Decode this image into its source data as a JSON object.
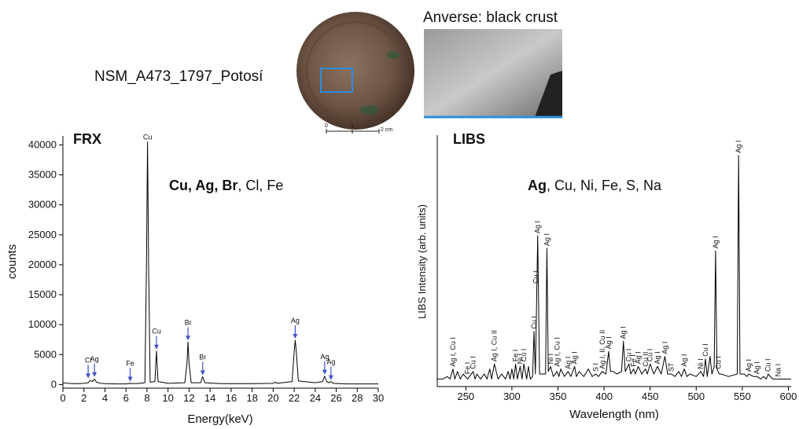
{
  "figure": {
    "sample": "NSM_A473_1797_Potosí",
    "photo_caption": "Anverse: black crust",
    "scale_labels": [
      "0",
      "1",
      "2 cm"
    ]
  },
  "chart_data": [
    {
      "type": "line",
      "title": "FRX",
      "note_bold": "Cu, Ag, Br",
      "note": ", Cl, Fe",
      "x_label": "Energy(keV)",
      "y_label": "counts",
      "color": "#000000",
      "arrow_color": "#3f51c6",
      "x": [
        0,
        0.5,
        1,
        1.5,
        2,
        2.4,
        2.6,
        2.8,
        3,
        3.2,
        3.6,
        4,
        5,
        6,
        6.3,
        6.4,
        6.5,
        7,
        7.8,
        7.95,
        8.05,
        8.15,
        8.3,
        8.75,
        8.9,
        9.05,
        10,
        11.6,
        11.8,
        11.9,
        12,
        12.2,
        13.1,
        13.3,
        13.5,
        15,
        18,
        20,
        20.2,
        20.4,
        21.8,
        22,
        22.1,
        22.2,
        22.4,
        24,
        24.7,
        24.9,
        25.1,
        25.3,
        25.5,
        25.7,
        27,
        30
      ],
      "values": [
        300,
        200,
        150,
        150,
        200,
        300,
        700,
        500,
        900,
        400,
        200,
        150,
        100,
        100,
        150,
        250,
        150,
        150,
        300,
        20000,
        40500,
        20000,
        400,
        500,
        5600,
        500,
        200,
        300,
        3500,
        7100,
        3500,
        300,
        300,
        1300,
        300,
        150,
        150,
        200,
        400,
        200,
        500,
        5500,
        7400,
        5500,
        600,
        300,
        500,
        1400,
        500,
        300,
        500,
        200,
        100,
        100
      ],
      "xlim": [
        0,
        30
      ],
      "xticks": [
        0,
        2,
        4,
        6,
        8,
        10,
        12,
        14,
        16,
        18,
        20,
        22,
        24,
        26,
        28,
        30
      ],
      "ylim": [
        -600,
        41500
      ],
      "yticks": [
        0,
        5000,
        10000,
        15000,
        20000,
        25000,
        30000,
        35000,
        40000
      ],
      "annotations": [
        {
          "text": "Cl",
          "x": 2.4,
          "y": 800,
          "arrow": true
        },
        {
          "text": "Ag",
          "x": 3,
          "y": 1000,
          "arrow": true
        },
        {
          "text": "Fe",
          "x": 6.4,
          "y": 250,
          "arrow": true
        },
        {
          "text": "Cu",
          "x": 8.05,
          "y": 40500,
          "arrow": false
        },
        {
          "text": "Cu",
          "x": 8.9,
          "y": 5600,
          "arrow": true
        },
        {
          "text": "Br",
          "x": 11.9,
          "y": 7100,
          "arrow": true
        },
        {
          "text": "Br",
          "x": 13.3,
          "y": 1300,
          "arrow": true
        },
        {
          "text": "Ag",
          "x": 22.1,
          "y": 7400,
          "arrow": true
        },
        {
          "text": "Ag",
          "x": 24.9,
          "y": 1400,
          "arrow": true
        },
        {
          "text": "Ag",
          "x": 25.5,
          "y": 500,
          "arrow": true
        }
      ]
    },
    {
      "type": "line",
      "title": "LIBS",
      "note_bold": "Ag",
      "note": ", Cu, Ni, Fe, S, Na",
      "x_label": "Wavelength (nm)",
      "y_label": "LIBS Intensity (arb. units)",
      "color": "#000000",
      "x": [
        219,
        225,
        230,
        233,
        236,
        238,
        241,
        244,
        247,
        252,
        258,
        260,
        262,
        266,
        270,
        273,
        276,
        278,
        281,
        285,
        289,
        293,
        296,
        298,
        300,
        302,
        304,
        306,
        309,
        311,
        313,
        316,
        318,
        320,
        322.5,
        324,
        325.5,
        328,
        330,
        336.5,
        338,
        339.5,
        342,
        345,
        349,
        351,
        353,
        357,
        361,
        364,
        368,
        370,
        373,
        378,
        383,
        387,
        391,
        394,
        398,
        402,
        405,
        407,
        410,
        414,
        419,
        421,
        423,
        427,
        429,
        432,
        434,
        437,
        441,
        445,
        447,
        450,
        454,
        458,
        462,
        466,
        469,
        473,
        477,
        481,
        484,
        487,
        490,
        493,
        500,
        505,
        508,
        510,
        512,
        515,
        517,
        519.5,
        521,
        522.5,
        525,
        527,
        535,
        544.5,
        546,
        547.5,
        552,
        555,
        557,
        562,
        566,
        570,
        573,
        576,
        578,
        583,
        589,
        595,
        603
      ],
      "values": [
        3,
        3,
        4,
        3,
        7,
        3,
        6,
        3,
        5,
        3,
        6,
        3,
        5,
        3,
        5,
        3,
        7,
        3,
        9,
        3,
        5,
        3,
        6,
        3,
        7,
        3,
        9,
        3,
        8,
        3,
        9,
        3,
        8,
        3,
        4,
        22,
        5,
        60,
        5,
        5,
        55,
        6,
        8,
        4,
        6,
        4,
        7,
        4,
        6,
        4,
        8,
        4,
        6,
        4,
        7,
        4,
        5,
        4,
        6,
        5,
        14,
        6,
        6,
        5,
        6,
        18,
        6,
        9,
        5,
        7,
        5,
        8,
        5,
        7,
        5,
        9,
        5,
        8,
        5,
        12,
        5,
        5,
        4,
        6,
        4,
        7,
        4,
        5,
        4,
        6,
        4,
        11,
        4,
        12,
        5,
        8,
        54,
        7,
        5,
        5,
        4,
        5,
        92,
        5,
        5,
        4,
        5,
        4,
        4,
        3,
        4,
        3,
        5,
        3,
        3,
        3,
        3
      ],
      "xlim": [
        219,
        603
      ],
      "xticks": [
        250,
        300,
        350,
        400,
        450,
        500,
        550,
        600
      ],
      "ylim": [
        0,
        100
      ],
      "annotations": [
        {
          "text": "Ag I, Cu I",
          "x": 236,
          "y": 7
        },
        {
          "text": "Fe I",
          "x": 252,
          "y": 4
        },
        {
          "text": "Cu I",
          "x": 258,
          "y": 6
        },
        {
          "text": "Ag I, Cu II",
          "x": 281,
          "y": 9
        },
        {
          "text": "Fe I",
          "x": 304,
          "y": 9
        },
        {
          "text": "Ni I",
          "x": 309,
          "y": 8
        },
        {
          "text": "Cu I",
          "x": 313,
          "y": 9
        },
        {
          "text": "Cu I",
          "x": 324,
          "y": 22
        },
        {
          "text": "Cu I",
          "x": 326,
          "y": 40
        },
        {
          "text": "Ag I",
          "x": 328,
          "y": 60
        },
        {
          "text": "Ag I",
          "x": 338,
          "y": 55
        },
        {
          "text": "Ni I",
          "x": 342,
          "y": 8
        },
        {
          "text": "Ag I, Cu I",
          "x": 349,
          "y": 7
        },
        {
          "text": "Ag I",
          "x": 361,
          "y": 6
        },
        {
          "text": "Ag I",
          "x": 368,
          "y": 8
        },
        {
          "text": "S I",
          "x": 391,
          "y": 5
        },
        {
          "text": "Ag I, II, Cu II",
          "x": 398,
          "y": 6
        },
        {
          "text": "Ag I",
          "x": 405,
          "y": 14
        },
        {
          "text": "Ag I",
          "x": 421,
          "y": 18
        },
        {
          "text": "Cu I",
          "x": 427,
          "y": 9
        },
        {
          "text": "Fe I",
          "x": 432,
          "y": 7
        },
        {
          "text": "Ag I",
          "x": 437,
          "y": 8
        },
        {
          "text": "Cu II",
          "x": 445,
          "y": 7
        },
        {
          "text": "Cu I",
          "x": 450,
          "y": 9
        },
        {
          "text": "Ag I",
          "x": 458,
          "y": 8
        },
        {
          "text": "Ag I",
          "x": 466,
          "y": 12
        },
        {
          "text": "ST",
          "x": 473,
          "y": 5
        },
        {
          "text": "Ag I",
          "x": 487,
          "y": 7
        },
        {
          "text": "Ni I",
          "x": 505,
          "y": 6
        },
        {
          "text": "Cu I",
          "x": 510,
          "y": 11
        },
        {
          "text": "Cu I",
          "x": 524,
          "y": 6
        },
        {
          "text": "Ag I",
          "x": 521,
          "y": 54
        },
        {
          "text": "Ag I",
          "x": 546,
          "y": 92
        },
        {
          "text": "Ag I",
          "x": 557,
          "y": 5
        },
        {
          "text": "Ag I",
          "x": 566,
          "y": 4
        },
        {
          "text": "Cu I",
          "x": 578,
          "y": 5
        },
        {
          "text": "Na I",
          "x": 589,
          "y": 3
        }
      ]
    }
  ]
}
